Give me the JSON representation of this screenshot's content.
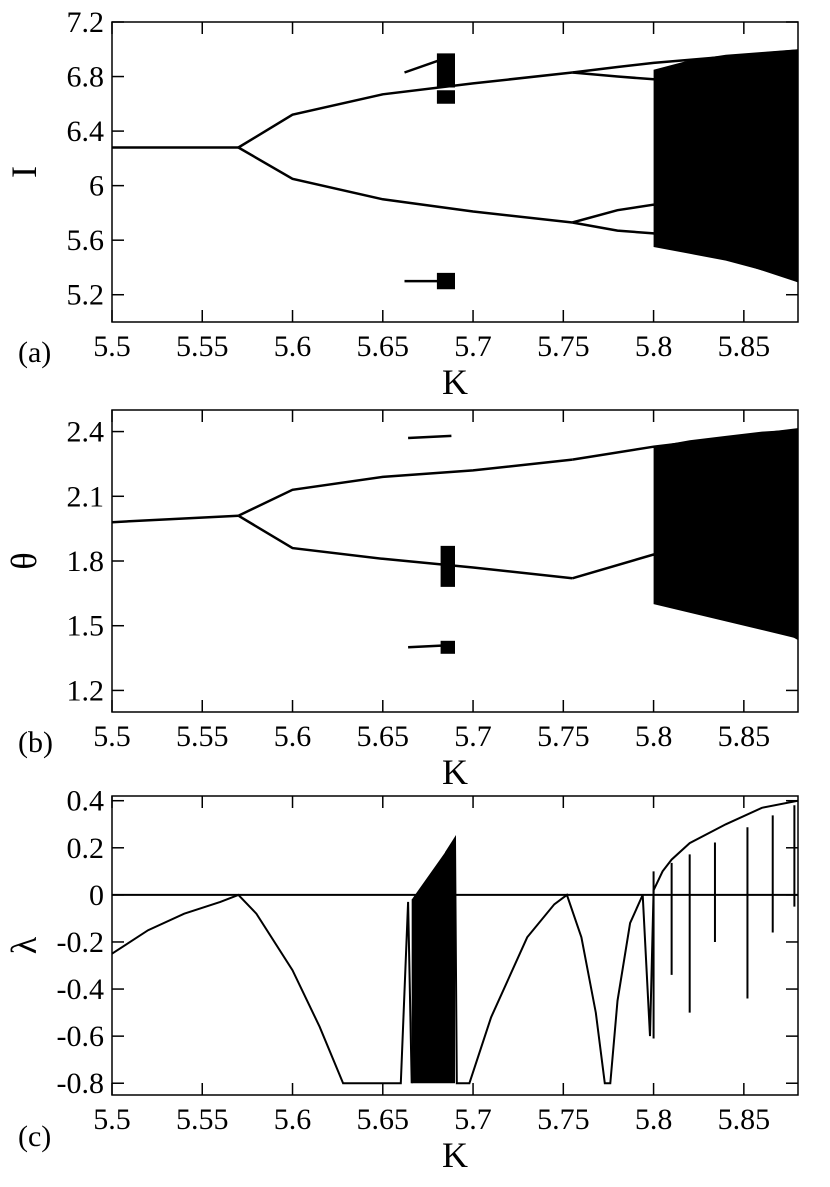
{
  "chart_data": [
    {
      "type": "scatter",
      "panel_label": "(a)",
      "xlabel": "K",
      "ylabel": "I",
      "xlim": [
        5.5,
        5.88
      ],
      "ylim": [
        5.0,
        7.2
      ],
      "xticks": [
        5.5,
        5.55,
        5.6,
        5.65,
        5.7,
        5.75,
        5.8,
        5.85
      ],
      "xtick_labels": [
        "5.5",
        "5.55",
        "5.6",
        "5.65",
        "5.7",
        "5.75",
        "5.8",
        "5.85"
      ],
      "yticks": [
        5.2,
        5.6,
        6.0,
        6.4,
        6.8,
        7.2
      ],
      "ytick_labels": [
        "5.2",
        "5.6",
        "6",
        "6.4",
        "6.8",
        "7.2"
      ],
      "grid": false,
      "branches": [
        {
          "x": [
            5.5,
            5.57
          ],
          "y": [
            6.28,
            6.28
          ]
        },
        {
          "x": [
            5.57,
            5.6,
            5.65,
            5.7,
            5.755
          ],
          "y": [
            6.28,
            6.52,
            6.67,
            6.75,
            6.83
          ]
        },
        {
          "x": [
            5.57,
            5.6,
            5.65,
            5.7,
            5.755
          ],
          "y": [
            6.28,
            6.05,
            5.9,
            5.81,
            5.73
          ]
        },
        {
          "x": [
            5.755,
            5.78,
            5.8,
            5.88
          ],
          "y": [
            6.83,
            6.8,
            6.78,
            6.99
          ]
        },
        {
          "x": [
            5.755,
            5.78,
            5.8,
            5.88
          ],
          "y": [
            6.83,
            6.87,
            6.9,
            6.99
          ]
        },
        {
          "x": [
            5.755,
            5.78,
            5.8,
            5.88
          ],
          "y": [
            5.73,
            5.67,
            5.65,
            5.3
          ]
        },
        {
          "x": [
            5.755,
            5.78,
            5.8,
            5.88
          ],
          "y": [
            5.73,
            5.82,
            5.86,
            5.3
          ]
        },
        {
          "x": [
            5.662,
            5.688
          ],
          "y": [
            6.83,
            6.95
          ]
        },
        {
          "x": [
            5.662,
            5.688
          ],
          "y": [
            5.3,
            5.3
          ]
        }
      ],
      "chaotic_regions": [
        {
          "x": [
            5.8,
            5.82,
            5.84,
            5.86,
            5.88
          ],
          "y_upper": [
            6.85,
            6.92,
            6.96,
            6.98,
            7.0
          ],
          "y_lower": [
            5.55,
            5.5,
            5.45,
            5.38,
            5.3
          ]
        },
        {
          "x": [
            5.68,
            5.69
          ],
          "y_upper": [
            6.97,
            6.97
          ],
          "y_lower": [
            6.72,
            6.72
          ]
        },
        {
          "x": [
            5.68,
            5.69
          ],
          "y_upper": [
            6.7,
            6.7
          ],
          "y_lower": [
            6.6,
            6.6
          ]
        },
        {
          "x": [
            5.68,
            5.69
          ],
          "y_upper": [
            5.36,
            5.36
          ],
          "y_lower": [
            5.24,
            5.24
          ]
        }
      ]
    },
    {
      "type": "scatter",
      "panel_label": "(b)",
      "xlabel": "K",
      "ylabel": "θ",
      "xlim": [
        5.5,
        5.88
      ],
      "ylim": [
        1.1,
        2.5
      ],
      "xticks": [
        5.5,
        5.55,
        5.6,
        5.65,
        5.7,
        5.75,
        5.8,
        5.85
      ],
      "xtick_labels": [
        "5.5",
        "5.55",
        "5.6",
        "5.65",
        "5.7",
        "5.75",
        "5.8",
        "5.85"
      ],
      "yticks": [
        1.2,
        1.5,
        1.8,
        2.1,
        2.4
      ],
      "ytick_labels": [
        "1.2",
        "1.5",
        "1.8",
        "2.1",
        "2.4"
      ],
      "grid": false,
      "branches": [
        {
          "x": [
            5.5,
            5.57
          ],
          "y": [
            1.98,
            2.01
          ]
        },
        {
          "x": [
            5.57,
            5.6,
            5.65,
            5.7,
            5.755
          ],
          "y": [
            2.01,
            2.13,
            2.19,
            2.22,
            2.27
          ]
        },
        {
          "x": [
            5.57,
            5.6,
            5.65,
            5.7,
            5.755
          ],
          "y": [
            2.01,
            1.86,
            1.81,
            1.77,
            1.72
          ]
        },
        {
          "x": [
            5.755,
            5.8,
            5.88
          ],
          "y": [
            2.27,
            2.33,
            2.41
          ]
        },
        {
          "x": [
            5.755,
            5.8,
            5.88
          ],
          "y": [
            1.72,
            1.83,
            1.44
          ]
        },
        {
          "x": [
            5.664,
            5.688
          ],
          "y": [
            2.37,
            2.38
          ]
        },
        {
          "x": [
            5.664,
            5.688
          ],
          "y": [
            1.4,
            1.41
          ]
        }
      ],
      "chaotic_regions": [
        {
          "x": [
            5.8,
            5.82,
            5.84,
            5.86,
            5.88
          ],
          "y_upper": [
            2.33,
            2.36,
            2.38,
            2.4,
            2.41
          ],
          "y_lower": [
            1.6,
            1.56,
            1.52,
            1.48,
            1.44
          ]
        },
        {
          "x": [
            5.682,
            5.69
          ],
          "y_upper": [
            1.87,
            1.87
          ],
          "y_lower": [
            1.68,
            1.68
          ]
        },
        {
          "x": [
            5.682,
            5.69
          ],
          "y_upper": [
            1.43,
            1.43
          ],
          "y_lower": [
            1.37,
            1.37
          ]
        }
      ]
    },
    {
      "type": "line",
      "panel_label": "(c)",
      "xlabel": "K",
      "ylabel": "λ",
      "xlim": [
        5.5,
        5.88
      ],
      "ylim": [
        -0.85,
        0.42
      ],
      "xticks": [
        5.5,
        5.55,
        5.6,
        5.65,
        5.7,
        5.75,
        5.8,
        5.85
      ],
      "xtick_labels": [
        "5.5",
        "5.55",
        "5.6",
        "5.65",
        "5.7",
        "5.75",
        "5.8",
        "5.85"
      ],
      "yticks": [
        -0.8,
        -0.6,
        -0.4,
        -0.2,
        0,
        0.2,
        0.4
      ],
      "ytick_labels": [
        "-0.8",
        "-0.6",
        "-0.4",
        "-0.2",
        "0",
        "0.2",
        "0.4"
      ],
      "grid": false,
      "zero_line": true,
      "series": [
        {
          "x": [
            5.5,
            5.52,
            5.54,
            5.56,
            5.57,
            5.58,
            5.6,
            5.615,
            5.628,
            5.64,
            5.66,
            5.664,
            5.666,
            5.668,
            5.67,
            5.675,
            5.68,
            5.685,
            5.69,
            5.691,
            5.698,
            5.71,
            5.73,
            5.745,
            5.752,
            5.76,
            5.768,
            5.773,
            5.776,
            5.78,
            5.787,
            5.794,
            5.798,
            5.8,
            5.805,
            5.81,
            5.82,
            5.84,
            5.86,
            5.88
          ],
          "y": [
            -0.25,
            -0.15,
            -0.08,
            -0.03,
            0.0,
            -0.08,
            -0.32,
            -0.56,
            -0.8,
            -0.8,
            -0.8,
            -0.03,
            -0.8,
            -0.6,
            -0.15,
            0.0,
            -0.05,
            0.18,
            0.24,
            -0.8,
            -0.8,
            -0.52,
            -0.18,
            -0.04,
            0.0,
            -0.18,
            -0.5,
            -0.8,
            -0.8,
            -0.45,
            -0.12,
            0.0,
            -0.6,
            0.02,
            0.1,
            0.15,
            0.22,
            0.3,
            0.37,
            0.4
          ]
        }
      ],
      "chaotic_band": {
        "x": [
          5.666,
          5.69
        ],
        "y_lower": -0.8,
        "y_upper": [
          -0.02,
          0.24
        ]
      },
      "negative_spikes": [
        {
          "x": 5.8,
          "y": -0.61
        },
        {
          "x": 5.82,
          "y": -0.5
        },
        {
          "x": 5.81,
          "y": -0.34
        },
        {
          "x": 5.834,
          "y": -0.2
        },
        {
          "x": 5.852,
          "y": -0.44
        },
        {
          "x": 5.866,
          "y": -0.16
        },
        {
          "x": 5.878,
          "y": -0.05
        }
      ]
    }
  ]
}
